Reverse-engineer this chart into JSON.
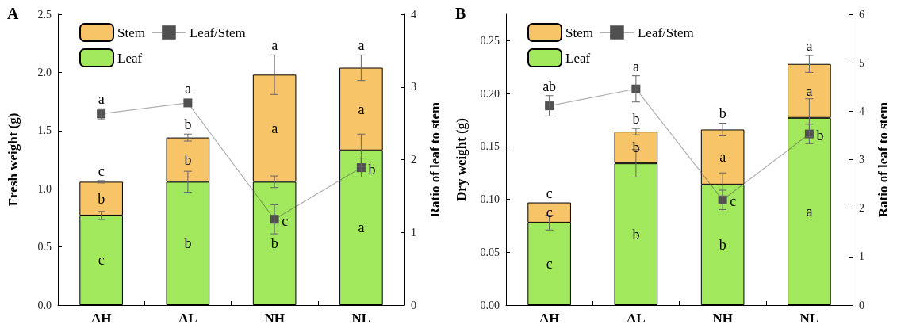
{
  "chart_data": [
    {
      "type": "bar",
      "title": "A",
      "categories": [
        "AH",
        "AL",
        "NH",
        "NL"
      ],
      "stacked": true,
      "ylabel": "Fresh weight (g)",
      "y2label": "Ratio of leaf to stem",
      "ylim": [
        0,
        2.5
      ],
      "yticks": [
        {
          "value": 0,
          "label": "0.0"
        },
        0.5,
        {
          "value": 1,
          "label": "1.0"
        },
        1.5,
        {
          "value": 2,
          "label": "2.0"
        },
        2.5
      ],
      "y2lim": [
        0,
        4
      ],
      "y2ticks": [
        0,
        1,
        2,
        3,
        4
      ],
      "grid": false,
      "legend": "top left",
      "marker": "square",
      "series": [
        {
          "name": "Leaf",
          "color": "#a2e85c",
          "values": [
            0.77,
            1.06,
            1.06,
            1.33
          ],
          "errors": [
            0.035,
            0.09,
            0.05,
            0.14
          ],
          "value_labels": [
            "c",
            "b",
            "b",
            "a"
          ]
        },
        {
          "name": "Stem",
          "color": "#f8c468",
          "values": [
            0.29,
            0.38,
            0.92,
            0.71
          ],
          "errors": [
            0.01,
            0.03,
            0.17,
            0.11
          ],
          "value_labels": [
            "b",
            "b",
            "a",
            "a"
          ]
        },
        {
          "name": "Leaf/Stem",
          "type": "line",
          "axis": "y2",
          "color": "#505050",
          "values": [
            2.63,
            2.78,
            1.18,
            1.89
          ],
          "errors": [
            0.07,
            null,
            0.2,
            0.13
          ],
          "value_labels": [
            "a",
            "a",
            "c",
            "b"
          ]
        }
      ],
      "annotations": [
        {
          "text": "c",
          "x": "AH",
          "y": 1.06
        },
        {
          "text": "b",
          "x": "AL",
          "y": 1.44
        },
        {
          "text": "a",
          "x": "NH",
          "y": 1.98
        },
        {
          "text": "a",
          "x": "NL",
          "y": 2.04
        }
      ]
    },
    {
      "type": "bar",
      "title": "B",
      "categories": [
        "AH",
        "AL",
        "NH",
        "NL"
      ],
      "stacked": true,
      "ylabel": "Dry weight (g)",
      "y2label": "Ratio of leaf to stem",
      "ylim": [
        0,
        0.275
      ],
      "yticks": [
        {
          "value": 0,
          "label": "0.00"
        },
        0.05,
        {
          "value": 0.1,
          "label": "0.10"
        },
        0.15,
        {
          "value": 0.2,
          "label": "0.20"
        },
        0.25
      ],
      "y2lim": [
        0,
        6
      ],
      "y2ticks": [
        0,
        1,
        2,
        3,
        4,
        5,
        6
      ],
      "grid": false,
      "legend": "top left",
      "marker": "square",
      "series": [
        {
          "name": "Leaf",
          "color": "#a2e85c",
          "values": [
            0.078,
            0.134,
            0.114,
            0.177
          ],
          "errors": [
            0.007,
            0.013,
            0.011,
            0.018
          ],
          "value_labels": [
            "c",
            "b",
            "b",
            "a"
          ]
        },
        {
          "name": "Stem",
          "color": "#f8c468",
          "values": [
            0.019,
            0.03,
            0.052,
            0.051
          ],
          "errors": [
            null,
            0.003,
            0.006,
            0.008
          ],
          "value_labels": [
            "c",
            "b",
            "a",
            "a"
          ]
        },
        {
          "name": "Leaf/Stem",
          "type": "line",
          "axis": "y2",
          "color": "#505050",
          "values": [
            4.11,
            4.46,
            2.17,
            3.53
          ],
          "errors": [
            0.21,
            0.27,
            0.2,
            0.2
          ],
          "value_labels": [
            "ab",
            "a",
            "c",
            "b"
          ]
        }
      ],
      "annotations": [
        {
          "text": "c",
          "x": "AH",
          "y": 0.097
        },
        {
          "text": "b",
          "x": "AL",
          "y": 0.164
        },
        {
          "text": "b",
          "x": "NH",
          "y": 0.166
        },
        {
          "text": "a",
          "x": "NL",
          "y": 0.228
        }
      ]
    }
  ]
}
